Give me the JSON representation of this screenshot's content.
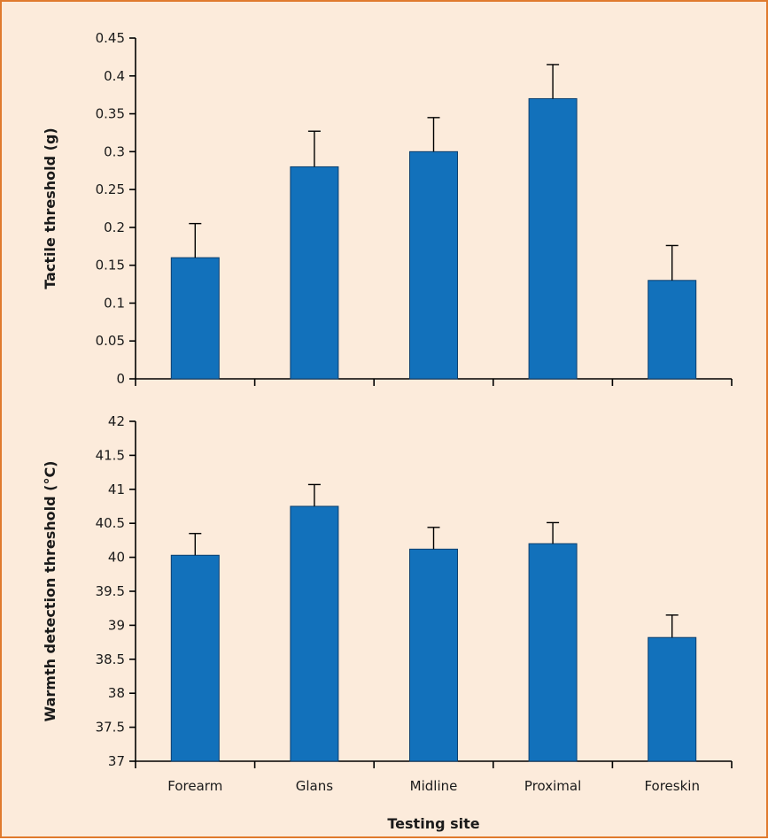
{
  "colors": {
    "bar": "#1271bb",
    "bar_outline": "#0c3f6e",
    "background": "#fcebdb",
    "frame": "#e07a2d"
  },
  "chart_data": [
    {
      "type": "bar",
      "categories": [
        "Forearm",
        "Glans",
        "Midline",
        "Proximal",
        "Foreskin"
      ],
      "series": [
        {
          "values": [
            0.16,
            0.28,
            0.3,
            0.37,
            0.13
          ],
          "errors": [
            0.045,
            0.047,
            0.045,
            0.045,
            0.046
          ]
        }
      ],
      "ylabel": "Tactile threshold (g)",
      "ylim": [
        0,
        0.45
      ],
      "yticks": [
        0,
        0.05,
        0.1,
        0.15,
        0.2,
        0.25,
        0.3,
        0.35,
        0.4,
        0.45
      ],
      "yticklabels": [
        "0",
        "0.05",
        "0.1",
        "0.15",
        "0.2",
        "0.25",
        "0.3",
        "0.35",
        "0.4",
        "0.45"
      ],
      "show_category_labels": false
    },
    {
      "type": "bar",
      "categories": [
        "Forearm",
        "Glans",
        "Midline",
        "Proximal",
        "Foreskin"
      ],
      "series": [
        {
          "values": [
            40.03,
            40.75,
            40.12,
            40.2,
            38.82
          ],
          "errors": [
            0.32,
            0.32,
            0.32,
            0.31,
            0.33
          ]
        }
      ],
      "ylabel": "Warmth detection threshold (°C)",
      "xlabel": "Testing site",
      "ylim": [
        37,
        42
      ],
      "yticks": [
        37,
        37.5,
        38,
        38.5,
        39,
        39.5,
        40,
        40.5,
        41,
        41.5,
        42
      ],
      "yticklabels": [
        "37",
        "37.5",
        "38",
        "38.5",
        "39",
        "39.5",
        "40",
        "40.5",
        "41",
        "41.5",
        "42"
      ],
      "show_category_labels": true
    }
  ]
}
